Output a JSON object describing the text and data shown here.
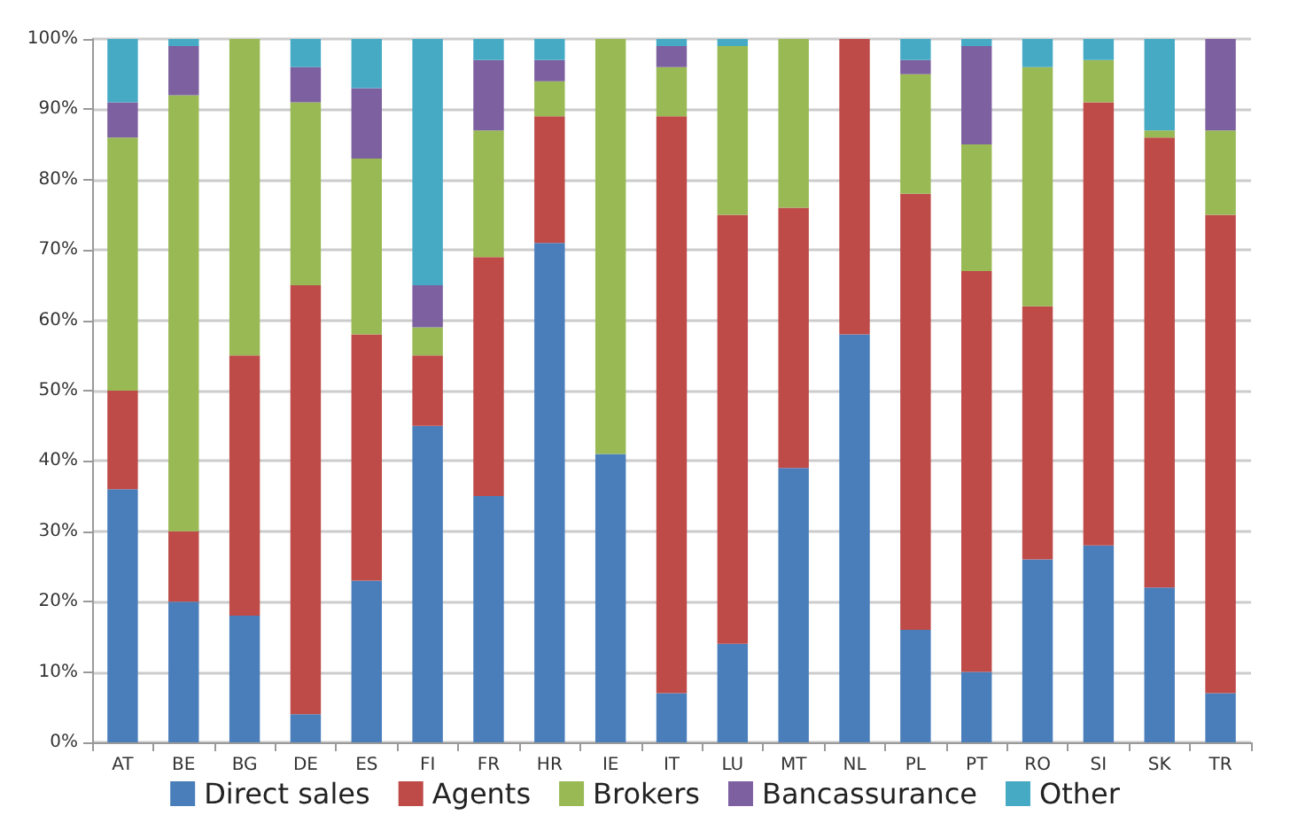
{
  "chart_data": {
    "type": "bar",
    "stacked": true,
    "categories": [
      "AT",
      "BE",
      "BG",
      "DE",
      "ES",
      "FI",
      "FR",
      "HR",
      "IE",
      "IT",
      "LU",
      "MT",
      "NL",
      "PL",
      "PT",
      "RO",
      "SI",
      "SK",
      "TR"
    ],
    "series": [
      {
        "name": "Direct sales",
        "color": "#4a7ebb",
        "values": [
          36,
          20,
          18,
          4,
          23,
          45,
          35,
          71,
          41,
          7,
          14,
          39,
          58,
          16,
          10,
          26,
          28,
          22,
          7
        ]
      },
      {
        "name": "Agents",
        "color": "#be4b48",
        "values": [
          14,
          10,
          37,
          61,
          35,
          10,
          34,
          18,
          0,
          82,
          61,
          37,
          42,
          62,
          57,
          36,
          63,
          64,
          68
        ]
      },
      {
        "name": "Brokers",
        "color": "#98b954",
        "values": [
          36,
          62,
          45,
          26,
          25,
          4,
          18,
          5,
          59,
          7,
          24,
          24,
          0,
          17,
          18,
          34,
          6,
          1,
          12
        ]
      },
      {
        "name": "Bancassurance",
        "color": "#7d60a0",
        "values": [
          5,
          7,
          0,
          5,
          10,
          6,
          10,
          3,
          0,
          3,
          0,
          0,
          0,
          2,
          14,
          0,
          0,
          0,
          13
        ]
      },
      {
        "name": "Other",
        "color": "#46aac5",
        "values": [
          9,
          1,
          0,
          4,
          7,
          35,
          3,
          3,
          0,
          1,
          1,
          0,
          0,
          3,
          1,
          4,
          3,
          13,
          0
        ]
      }
    ],
    "ylim": [
      0,
      100
    ],
    "yticks": [
      {
        "value": 0,
        "label": "0%"
      },
      {
        "value": 10,
        "label": "10%"
      },
      {
        "value": 20,
        "label": "20%"
      },
      {
        "value": 30,
        "label": "30%"
      },
      {
        "value": 40,
        "label": "40%"
      },
      {
        "value": 50,
        "label": "50%"
      },
      {
        "value": 60,
        "label": "60%"
      },
      {
        "value": 70,
        "label": "70%"
      },
      {
        "value": 80,
        "label": "80%"
      },
      {
        "value": 90,
        "label": "90%"
      },
      {
        "value": 100,
        "label": "100%"
      }
    ],
    "grid": "y",
    "legend": "bottom"
  }
}
